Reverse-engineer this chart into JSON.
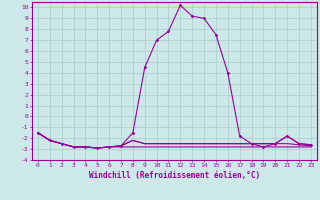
{
  "xlabel": "Windchill (Refroidissement éolien,°C)",
  "x": [
    0,
    1,
    2,
    3,
    4,
    5,
    6,
    7,
    8,
    9,
    10,
    11,
    12,
    13,
    14,
    15,
    16,
    17,
    18,
    19,
    20,
    21,
    22,
    23
  ],
  "line1": [
    -1.5,
    -2.2,
    -2.5,
    -2.8,
    -2.8,
    -2.9,
    -2.8,
    -2.7,
    -1.5,
    4.5,
    7.0,
    7.8,
    10.2,
    9.2,
    9.0,
    7.5,
    4.0,
    -1.8,
    -2.5,
    -2.8,
    -2.5,
    -1.8,
    -2.5,
    -2.6
  ],
  "line2": [
    -1.5,
    -2.2,
    -2.5,
    -2.8,
    -2.8,
    -2.9,
    -2.8,
    -2.7,
    -2.2,
    -2.5,
    -2.5,
    -2.5,
    -2.5,
    -2.5,
    -2.5,
    -2.5,
    -2.5,
    -2.5,
    -2.5,
    -2.5,
    -2.5,
    -1.8,
    -2.5,
    -2.6
  ],
  "line3": [
    -1.5,
    -2.2,
    -2.5,
    -2.8,
    -2.8,
    -2.9,
    -2.8,
    -2.7,
    -2.2,
    -2.5,
    -2.5,
    -2.5,
    -2.5,
    -2.5,
    -2.5,
    -2.5,
    -2.5,
    -2.5,
    -2.5,
    -2.5,
    -2.5,
    -2.5,
    -2.6,
    -2.7
  ],
  "line4": [
    -1.5,
    -2.2,
    -2.5,
    -2.8,
    -2.8,
    -2.9,
    -2.8,
    -2.8,
    -2.8,
    -2.8,
    -2.8,
    -2.8,
    -2.8,
    -2.8,
    -2.8,
    -2.8,
    -2.8,
    -2.8,
    -2.8,
    -2.8,
    -2.8,
    -2.8,
    -2.8,
    -2.8
  ],
  "line_color": "#990099",
  "bg_color": "#cce8e8",
  "grid_color": "#aacccc",
  "ylim": [
    -4,
    10.5
  ],
  "yticks": [
    -4,
    -3,
    -2,
    -1,
    0,
    1,
    2,
    3,
    4,
    5,
    6,
    7,
    8,
    9,
    10
  ],
  "xticks": [
    0,
    1,
    2,
    3,
    4,
    5,
    6,
    7,
    8,
    9,
    10,
    11,
    12,
    13,
    14,
    15,
    16,
    17,
    18,
    19,
    20,
    21,
    22,
    23
  ],
  "marker": "D",
  "markersize": 1.8,
  "linewidth": 0.8,
  "tick_fontsize": 4.5,
  "label_fontsize": 5.5
}
